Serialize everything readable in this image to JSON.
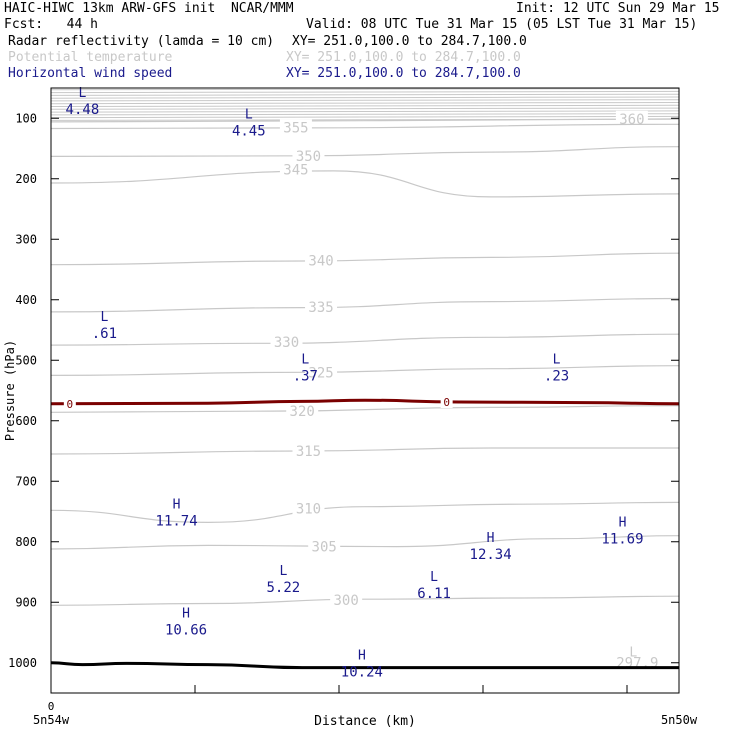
{
  "header": {
    "title": "HAIC-HIWC 13km ARW-GFS init  NCAR/MMM",
    "init": "Init: 12 UTC Sun 29 Mar 15",
    "fcst": "Fcst:   44 h",
    "valid": "Valid: 08 UTC Tue 31 Mar 15 (05 LST Tue 31 Mar 15)",
    "fields": [
      {
        "name": "Radar reflectivity (lamda = 10 cm)",
        "xy": "XY= 251.0,100.0 to 284.7,100.0",
        "color": "#000000"
      },
      {
        "name": "Potential temperature",
        "xy": "XY= 251.0,100.0 to 284.7,100.0",
        "color": "#c8c8c8"
      },
      {
        "name": "Horizontal wind speed",
        "xy": "XY= 251.0,100.0 to 284.7,100.0",
        "color": "#1a1a8c"
      }
    ]
  },
  "chart_data": {
    "type": "line",
    "ylabel": "Pressure (hPa)",
    "xlabel": "Distance (km)",
    "x_tick_zero": "0",
    "x_left_label": "5n54w",
    "x_right_label": "5n50w",
    "yticks": [
      "100",
      "200",
      "300",
      "400",
      "500",
      "600",
      "700",
      "800",
      "900",
      "1000"
    ],
    "ylim": [
      50,
      1050
    ],
    "y_inverted": true,
    "colors": {
      "theta": "#c8c8c8",
      "reflectivity": "#7a0000",
      "wind": "#1a1a8c",
      "terrain": "#000000"
    },
    "theta_labels": [
      "355",
      "360",
      "350",
      "345",
      "340",
      "335",
      "330",
      "325",
      "320",
      "315",
      "310",
      "305",
      "300",
      "297.9"
    ],
    "reflectivity_labels": [
      "0",
      "0"
    ],
    "reflectivity_zero_line": [
      [
        0,
        572
      ],
      [
        0.25,
        571
      ],
      [
        0.4,
        568
      ],
      [
        0.5,
        566
      ],
      [
        0.65,
        569
      ],
      [
        0.85,
        570
      ],
      [
        1,
        572
      ]
    ],
    "terrain": [
      [
        0,
        1000
      ],
      [
        0.05,
        1003
      ],
      [
        0.12,
        1001
      ],
      [
        0.25,
        1003
      ],
      [
        0.4,
        1008
      ],
      [
        0.6,
        1008
      ],
      [
        0.8,
        1008
      ],
      [
        1,
        1008
      ]
    ],
    "wind_extrema": [
      {
        "kind": "L",
        "value": "4.48",
        "x": 0.05,
        "p": 65
      },
      {
        "kind": "L",
        "value": "4.45",
        "x": 0.315,
        "p": 100
      },
      {
        "kind": "L",
        "value": ".61",
        "x": 0.085,
        "p": 435
      },
      {
        "kind": "L",
        "value": ".37",
        "x": 0.405,
        "p": 505
      },
      {
        "kind": "L",
        "value": ".23",
        "x": 0.805,
        "p": 505
      },
      {
        "kind": "H",
        "value": "11.74",
        "x": 0.2,
        "p": 745
      },
      {
        "kind": "H",
        "value": "11.69",
        "x": 0.91,
        "p": 775
      },
      {
        "kind": "H",
        "value": "12.34",
        "x": 0.7,
        "p": 800
      },
      {
        "kind": "L",
        "value": "5.22",
        "x": 0.37,
        "p": 855
      },
      {
        "kind": "L",
        "value": "6.11",
        "x": 0.61,
        "p": 865
      },
      {
        "kind": "H",
        "value": "10.66",
        "x": 0.215,
        "p": 925
      },
      {
        "kind": "H",
        "value": "10.24",
        "x": 0.495,
        "p": 995
      }
    ],
    "theta_lines": [
      {
        "label": "360",
        "pts": [
          [
            0,
            106
          ],
          [
            0.5,
            104
          ],
          [
            1,
            101
          ]
        ],
        "lx": 0.925,
        "lp": 101
      },
      {
        "label": "355",
        "pts": [
          [
            0,
            117
          ],
          [
            0.4,
            116
          ],
          [
            1,
            110
          ]
        ],
        "lx": 0.39,
        "lp": 115
      },
      {
        "label": "350",
        "pts": [
          [
            0,
            163
          ],
          [
            0.4,
            162
          ],
          [
            0.7,
            156
          ],
          [
            1,
            147
          ]
        ],
        "lx": 0.41,
        "lp": 162
      },
      {
        "label": "345",
        "pts": [
          [
            0,
            207
          ],
          [
            0.45,
            187
          ],
          [
            0.7,
            230
          ],
          [
            1,
            225
          ]
        ],
        "lx": 0.39,
        "lp": 185
      },
      {
        "label": "340",
        "pts": [
          [
            0,
            342
          ],
          [
            0.4,
            336
          ],
          [
            0.7,
            330
          ],
          [
            1,
            323
          ]
        ],
        "lx": 0.43,
        "lp": 335
      },
      {
        "label": "335",
        "pts": [
          [
            0,
            420
          ],
          [
            0.4,
            413
          ],
          [
            0.7,
            403
          ],
          [
            1,
            398
          ]
        ],
        "lx": 0.43,
        "lp": 412
      },
      {
        "label": "330",
        "pts": [
          [
            0,
            475
          ],
          [
            0.35,
            472
          ],
          [
            0.7,
            462
          ],
          [
            1,
            457
          ]
        ],
        "lx": 0.375,
        "lp": 470
      },
      {
        "label": "325",
        "pts": [
          [
            0,
            525
          ],
          [
            0.4,
            520
          ],
          [
            0.7,
            514
          ],
          [
            1,
            509
          ]
        ],
        "lx": 0.43,
        "lp": 520
      },
      {
        "label": "320",
        "pts": [
          [
            0,
            586
          ],
          [
            0.35,
            584
          ],
          [
            0.7,
            578
          ],
          [
            1,
            575
          ]
        ],
        "lx": 0.4,
        "lp": 584
      },
      {
        "label": "315",
        "pts": [
          [
            0,
            655
          ],
          [
            0.4,
            650
          ],
          [
            0.7,
            645
          ],
          [
            1,
            645
          ]
        ],
        "lx": 0.41,
        "lp": 650
      },
      {
        "label": "310",
        "pts": [
          [
            0,
            748
          ],
          [
            0.25,
            768
          ],
          [
            0.5,
            742
          ],
          [
            0.75,
            738
          ],
          [
            1,
            735
          ]
        ],
        "lx": 0.41,
        "lp": 745
      },
      {
        "label": "305",
        "pts": [
          [
            0,
            812
          ],
          [
            0.25,
            806
          ],
          [
            0.55,
            808
          ],
          [
            0.8,
            795
          ],
          [
            1,
            790
          ]
        ],
        "lx": 0.435,
        "lp": 808
      },
      {
        "label": "300",
        "pts": [
          [
            0,
            905
          ],
          [
            0.25,
            902
          ],
          [
            0.5,
            895
          ],
          [
            0.75,
            893
          ],
          [
            1,
            890
          ]
        ],
        "lx": 0.47,
        "lp": 896
      }
    ]
  }
}
